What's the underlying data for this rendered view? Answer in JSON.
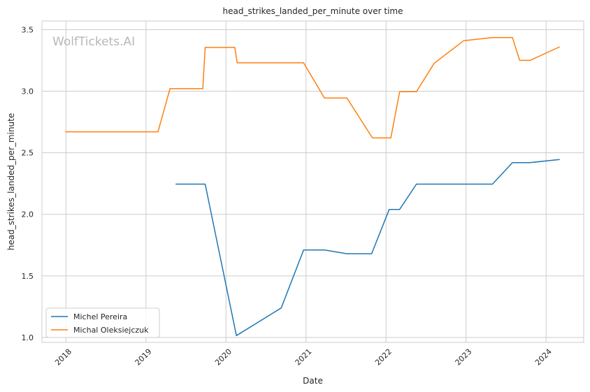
{
  "chart_data": {
    "type": "line",
    "title": "head_strikes_landed_per_minute over time",
    "xlabel": "Date",
    "ylabel": "head_strikes_landed_per_minute",
    "xlim": [
      2017.7,
      2024.47
    ],
    "ylim": [
      0.96,
      3.57
    ],
    "x_ticks": [
      "2018",
      "2019",
      "2020",
      "2021",
      "2022",
      "2023",
      "2024"
    ],
    "y_ticks": [
      "1.0",
      "1.5",
      "2.0",
      "2.5",
      "3.0",
      "3.5"
    ],
    "grid": true,
    "legend_position": "lower-left",
    "watermark": "WolfTickets.AI",
    "series": [
      {
        "name": "Michel Pereira",
        "color": "#1f77b4",
        "x": [
          2019.37,
          2019.74,
          2020.13,
          2020.69,
          2020.97,
          2021.23,
          2021.51,
          2021.82,
          2022.04,
          2022.17,
          2022.38,
          2023.0,
          2023.33,
          2023.58,
          2023.8,
          2024.17
        ],
        "y": [
          2.245,
          2.245,
          1.015,
          1.24,
          1.71,
          1.71,
          1.68,
          1.68,
          2.04,
          2.04,
          2.245,
          2.245,
          2.245,
          2.42,
          2.42,
          2.445
        ]
      },
      {
        "name": "Michal Oleksiejczuk",
        "color": "#ff7f0e",
        "x": [
          2017.99,
          2019.15,
          2019.3,
          2019.71,
          2019.74,
          2020.11,
          2020.14,
          2020.97,
          2021.23,
          2021.51,
          2021.83,
          2022.06,
          2022.17,
          2022.38,
          2022.6,
          2022.97,
          2023.33,
          2023.58,
          2023.67,
          2023.8,
          2024.17
        ],
        "y": [
          2.67,
          2.67,
          3.02,
          3.02,
          3.355,
          3.355,
          3.23,
          3.23,
          2.945,
          2.945,
          2.62,
          2.62,
          2.995,
          2.995,
          3.225,
          3.41,
          3.435,
          3.435,
          3.25,
          3.25,
          3.36
        ]
      }
    ]
  }
}
